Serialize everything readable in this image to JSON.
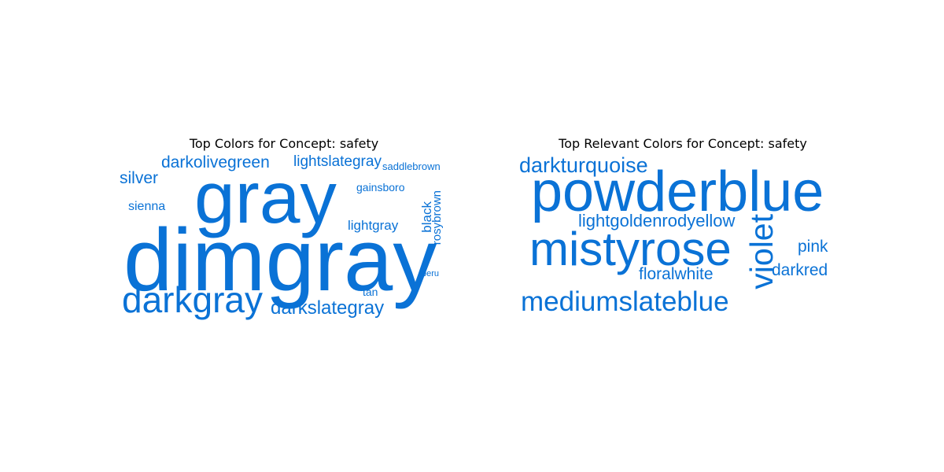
{
  "chart_data": [
    {
      "type": "wordcloud",
      "title": "Top Colors for Concept: safety",
      "word_color": "#0a72d6",
      "words": [
        {
          "text": "dimgray",
          "weight": 1.0
        },
        {
          "text": "gray",
          "weight": 0.86
        },
        {
          "text": "darkgray",
          "weight": 0.46
        },
        {
          "text": "darkslategray",
          "weight": 0.27
        },
        {
          "text": "darkolivegreen",
          "weight": 0.23
        },
        {
          "text": "lightslategray",
          "weight": 0.2
        },
        {
          "text": "silver",
          "weight": 0.22
        },
        {
          "text": "lightgray",
          "weight": 0.17
        },
        {
          "text": "black",
          "weight": 0.16
        },
        {
          "text": "sienna",
          "weight": 0.16
        },
        {
          "text": "gainsboro",
          "weight": 0.15
        },
        {
          "text": "rosybrown",
          "weight": 0.15
        },
        {
          "text": "tan",
          "weight": 0.14
        },
        {
          "text": "saddlebrown",
          "weight": 0.13
        },
        {
          "text": "peru",
          "weight": 0.1
        }
      ]
    },
    {
      "type": "wordcloud",
      "title": "Top Relevant Colors for Concept: safety",
      "word_color": "#0a72d6",
      "words": [
        {
          "text": "powderblue",
          "weight": 1.0
        },
        {
          "text": "mistyrose",
          "weight": 0.9
        },
        {
          "text": "violet",
          "weight": 0.62
        },
        {
          "text": "mediumslateblue",
          "weight": 0.55
        },
        {
          "text": "darkturquoise",
          "weight": 0.4
        },
        {
          "text": "lightgoldenrodyellow",
          "weight": 0.37
        },
        {
          "text": "floralwhite",
          "weight": 0.33
        },
        {
          "text": "pink",
          "weight": 0.33
        },
        {
          "text": "darkred",
          "weight": 0.33
        }
      ]
    }
  ]
}
